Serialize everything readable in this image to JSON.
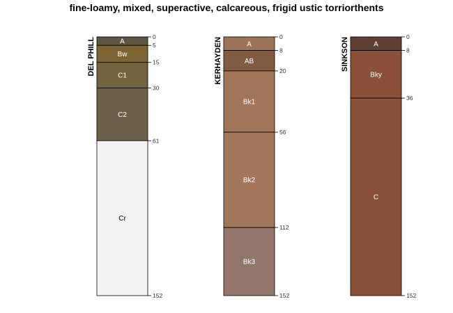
{
  "title": "fine-loamy, mixed, superactive, calcareous, frigid ustic torriorthents",
  "max_depth": 152,
  "profiles": [
    {
      "name": "DEL PHILL",
      "horizons": [
        {
          "name": "A",
          "top": 0,
          "bottom": 5,
          "color": "#5e5540",
          "text_color": "#ffffff"
        },
        {
          "name": "Bw",
          "top": 5,
          "bottom": 15,
          "color": "#7c6534",
          "text_color": "#ffffff"
        },
        {
          "name": "C1",
          "top": 15,
          "bottom": 30,
          "color": "#73633f",
          "text_color": "#ffffff"
        },
        {
          "name": "C2",
          "top": 30,
          "bottom": 61,
          "color": "#6d6049",
          "text_color": "#ffffff"
        },
        {
          "name": "Cr",
          "top": 61,
          "bottom": 152,
          "color": "#f2f2f2",
          "text_color": "#000000"
        }
      ]
    },
    {
      "name": "KERHAYDEN",
      "horizons": [
        {
          "name": "A",
          "top": 0,
          "bottom": 8,
          "color": "#9c7356",
          "text_color": "#ffffff"
        },
        {
          "name": "AB",
          "top": 8,
          "bottom": 20,
          "color": "#835a42",
          "text_color": "#ffffff"
        },
        {
          "name": "Bk1",
          "top": 20,
          "bottom": 56,
          "color": "#a2765a",
          "text_color": "#ffffff"
        },
        {
          "name": "Bk2",
          "top": 56,
          "bottom": 112,
          "color": "#a2775b",
          "text_color": "#ffffff"
        },
        {
          "name": "Bk3",
          "top": 112,
          "bottom": 152,
          "color": "#92766a",
          "text_color": "#ffffff"
        }
      ]
    },
    {
      "name": "SINKSON",
      "horizons": [
        {
          "name": "A",
          "top": 0,
          "bottom": 8,
          "color": "#5e4130",
          "text_color": "#ffffff"
        },
        {
          "name": "Bky",
          "top": 8,
          "bottom": 36,
          "color": "#8a503a",
          "text_color": "#ffffff"
        },
        {
          "name": "C",
          "top": 36,
          "bottom": 152,
          "color": "#8a513a",
          "text_color": "#ffffff"
        }
      ]
    }
  ]
}
